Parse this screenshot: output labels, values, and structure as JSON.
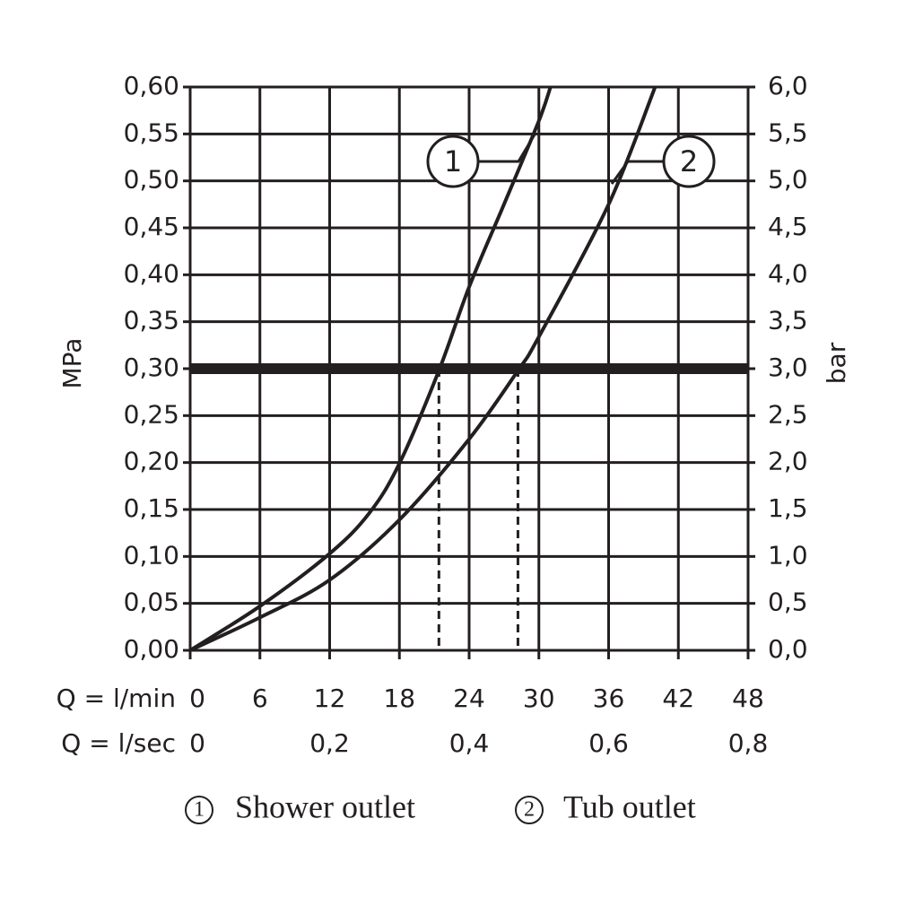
{
  "chart_data": {
    "type": "line",
    "y_label": "MPa",
    "y2_label": "bar",
    "x_label": "Q = l/min",
    "x2_label": "Q = l/sec",
    "xlim": [
      0,
      48
    ],
    "xticks": [
      0,
      6,
      12,
      18,
      24,
      30,
      36,
      42,
      48
    ],
    "x2lim": [
      0,
      0.8
    ],
    "x2ticks": [
      0,
      {
        "value": 0.2,
        "label": "0,2"
      },
      {
        "value": 0.4,
        "label": "0,4"
      },
      {
        "value": 0.6,
        "label": "0,6"
      },
      {
        "value": 0.8,
        "label": "0,8"
      }
    ],
    "ylim": [
      0,
      0.6
    ],
    "yticks": [
      {
        "value": 0,
        "label": "0,00"
      },
      {
        "value": 0.05,
        "label": "0,05"
      },
      {
        "value": 0.1,
        "label": "0,10"
      },
      {
        "value": 0.15,
        "label": "0,15"
      },
      {
        "value": 0.2,
        "label": "0,20"
      },
      {
        "value": 0.25,
        "label": "0,25"
      },
      {
        "value": 0.3,
        "label": "0,30"
      },
      {
        "value": 0.35,
        "label": "0,35"
      },
      {
        "value": 0.4,
        "label": "0,40"
      },
      {
        "value": 0.45,
        "label": "0,45"
      },
      {
        "value": 0.5,
        "label": "0,50"
      },
      {
        "value": 0.55,
        "label": "0,55"
      },
      {
        "value": 0.6,
        "label": "0,60"
      }
    ],
    "y2lim": [
      0,
      6
    ],
    "y2ticks": [
      {
        "value": 0,
        "label": "0,0"
      },
      {
        "value": 0.5,
        "label": "0,5"
      },
      {
        "value": 1,
        "label": "1,0"
      },
      {
        "value": 1.5,
        "label": "1,5"
      },
      {
        "value": 2,
        "label": "2,0"
      },
      {
        "value": 2.5,
        "label": "2,5"
      },
      {
        "value": 3,
        "label": "3,0"
      },
      {
        "value": 3.5,
        "label": "3,5"
      },
      {
        "value": 4,
        "label": "4,0"
      },
      {
        "value": 4.5,
        "label": "4,5"
      },
      {
        "value": 5,
        "label": "5,0"
      },
      {
        "value": 5.5,
        "label": "5,5"
      },
      {
        "value": 6,
        "label": "6,0"
      }
    ],
    "grid": true,
    "color": "#231f20",
    "reference_line": 0.3,
    "drop_lines": [
      21.4,
      28.2
    ],
    "series": [
      {
        "name": "Shower outlet",
        "marker": "1",
        "color": "#231f20",
        "x": [
          0,
          6,
          12,
          15.4,
          18,
          21.4,
          24,
          27,
          30,
          31
        ],
        "values": [
          0,
          0.047,
          0.103,
          0.146,
          0.199,
          0.298,
          0.387,
          0.475,
          0.564,
          0.6
        ]
      },
      {
        "name": "Tub outlet",
        "marker": "2",
        "color": "#231f20",
        "x": [
          0,
          6,
          12,
          18,
          24,
          28.2,
          30,
          36,
          40
        ],
        "values": [
          0,
          0.035,
          0.075,
          0.139,
          0.225,
          0.298,
          0.334,
          0.475,
          0.6
        ]
      }
    ]
  }
}
